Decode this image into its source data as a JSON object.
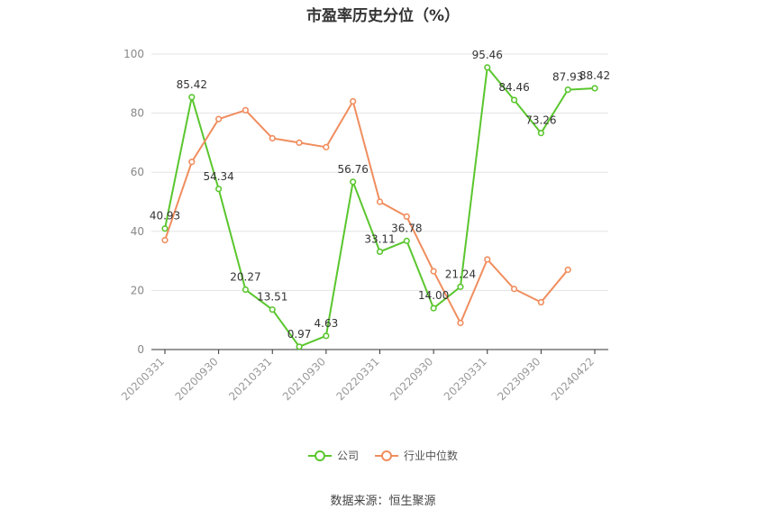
{
  "title": "市盈率历史分位（%）",
  "source": "数据来源：恒生聚源",
  "chart_data": {
    "type": "line",
    "x_ticks": [
      "20200331",
      "20200930",
      "20210331",
      "20210930",
      "20220331",
      "20220930",
      "20230331",
      "20230930",
      "20240422"
    ],
    "ylim": [
      0,
      100
    ],
    "y_ticks": [
      0,
      20,
      40,
      60,
      80,
      100
    ],
    "grid": true,
    "legend_position": "bottom",
    "series": [
      {
        "name": "公司",
        "color": "#5ac62e",
        "values": [
          40.93,
          85.42,
          54.34,
          20.27,
          13.51,
          0.97,
          4.63,
          56.76,
          33.11,
          36.78,
          14.0,
          21.24,
          95.46,
          84.46,
          73.26,
          87.93,
          88.42
        ],
        "labels": [
          "40.93",
          "85.42",
          "54.34",
          "20.27",
          "13.51",
          "0.97",
          "4.63",
          "56.76",
          "33.11",
          "36.78",
          "14.00",
          "21.24",
          "95.46",
          "84.46",
          "73.26",
          "87.93",
          "88.42"
        ]
      },
      {
        "name": "行业中位数",
        "color": "#f08d5e",
        "values": [
          37,
          63.5,
          78,
          81,
          71.5,
          70,
          68.5,
          84,
          50,
          45,
          26.5,
          9,
          30.5,
          20.5,
          16,
          27,
          null
        ]
      }
    ]
  }
}
